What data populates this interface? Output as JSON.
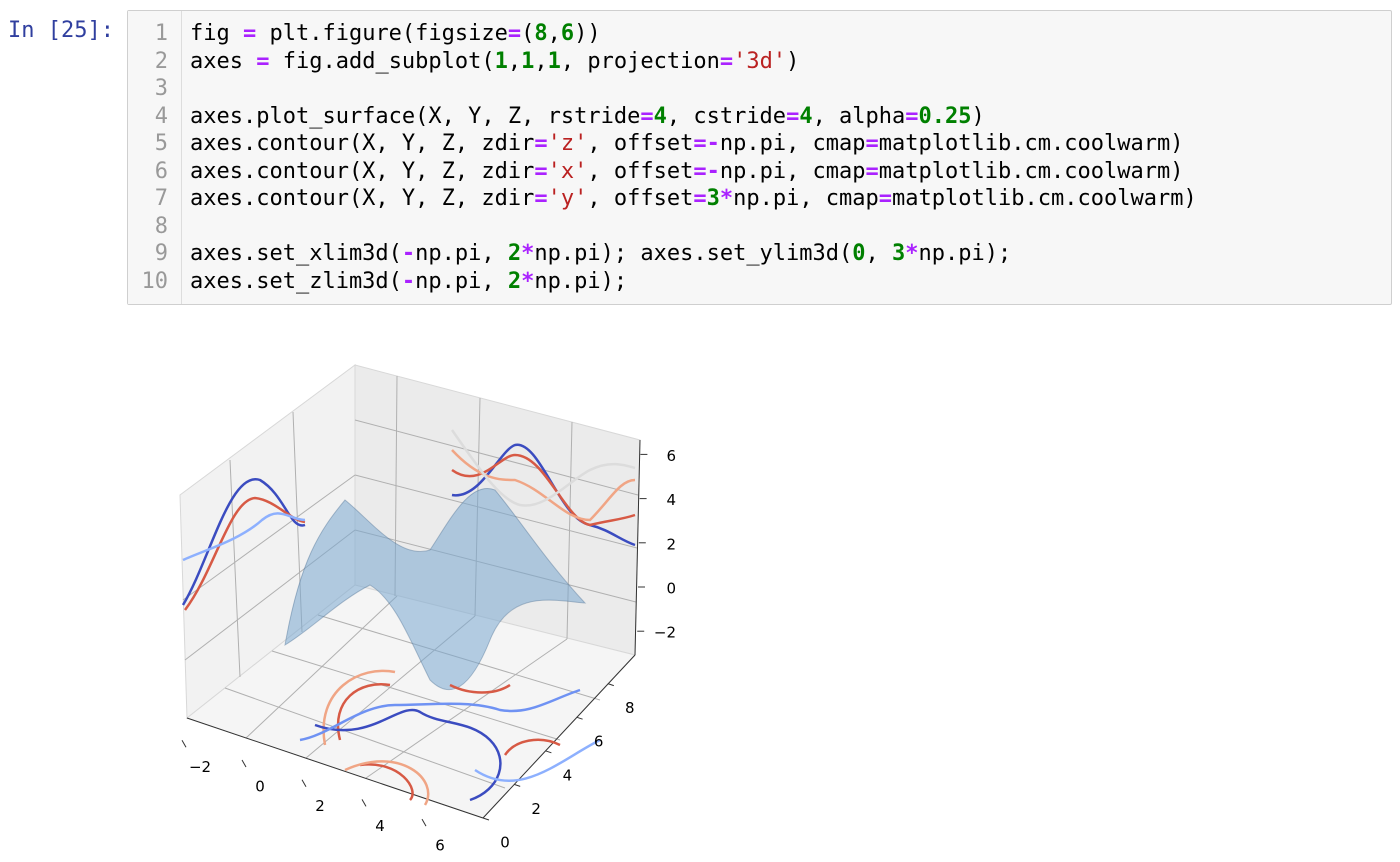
{
  "prompt": "In [25]:",
  "cell": {
    "lines": [
      {
        "number": 1,
        "code": "fig = plt.figure(figsize=(8,6))"
      },
      {
        "number": 2,
        "code": "axes = fig.add_subplot(1,1,1, projection='3d')"
      },
      {
        "number": 3
      },
      {
        "number": 4,
        "code": "axes.plot_surface(X, Y, Z, rstride=4, cstride=4, alpha=0.25)"
      },
      {
        "number": 5,
        "code": "axes.contour(X, Y, Z, zdir='z', offset=-np.pi, cmap=matplotlib.cm.coolwarm)"
      },
      {
        "number": 6,
        "code": "axes.contour(X, Y, Z, zdir='x', offset=-np.pi, cmap=matplotlib.cm.coolwarm)"
      },
      {
        "number": 7,
        "code": "axes.contour(X, Y, Z, zdir='y', offset=3*np.pi, cmap=matplotlib.cm.coolwarm)"
      },
      {
        "number": 8
      },
      {
        "number": 9,
        "code": "axes.set_xlim3d(-np.pi, 2*np.pi); axes.set_ylim3d(0, 3*np.pi);"
      },
      {
        "number": 10,
        "code": "axes.set_zlim3d(-np.pi, 2*np.pi);"
      }
    ]
  },
  "plot": {
    "xticks": [
      {
        "value": -2,
        "label": "−2"
      },
      0,
      2,
      4,
      6
    ],
    "yticks": [
      0,
      2,
      4,
      6,
      8
    ],
    "zticks": [
      {
        "value": -2,
        "label": "−2"
      },
      0,
      2,
      4,
      6
    ]
  }
}
